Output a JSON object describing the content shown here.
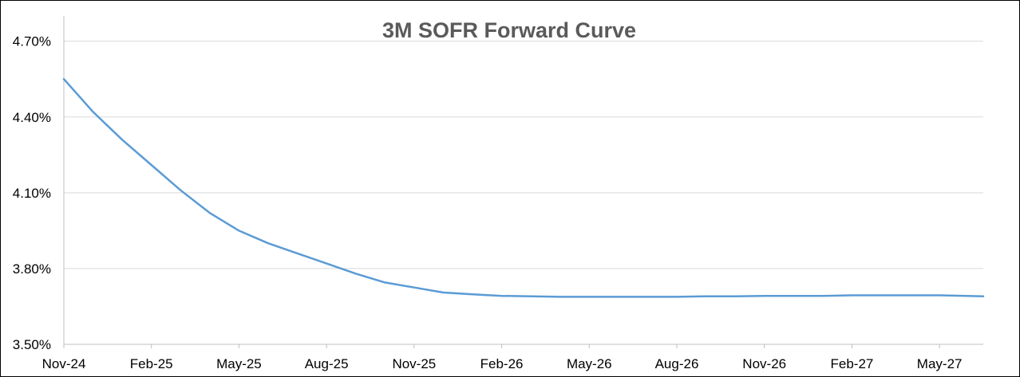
{
  "chart_data": {
    "type": "line",
    "title": "3M SOFR Forward Curve",
    "xlabel": "",
    "ylabel": "",
    "ylim": [
      3.5,
      4.8
    ],
    "y_ticks": [
      3.5,
      3.8,
      4.1,
      4.4,
      4.7
    ],
    "y_tick_labels": [
      "3.50%",
      "3.80%",
      "4.10%",
      "4.40%",
      "4.70%"
    ],
    "x_tick_labels": [
      "Nov-24",
      "Feb-25",
      "May-25",
      "Aug-25",
      "Nov-25",
      "Feb-26",
      "May-26",
      "Aug-26",
      "Nov-26",
      "Feb-27",
      "May-27"
    ],
    "x_range_months": [
      0,
      31.5
    ],
    "grid": true,
    "legend": "none",
    "line_color": "#5b9bd5",
    "series": [
      {
        "x": [
          0,
          1,
          2,
          3,
          4,
          5,
          6,
          7,
          8,
          9,
          10,
          11,
          12,
          13,
          14,
          15,
          16,
          17,
          18,
          19,
          20,
          21,
          22,
          23,
          24,
          25,
          26,
          27,
          28,
          29,
          30,
          31.5
        ],
        "values": [
          4.55,
          4.42,
          4.31,
          4.21,
          4.11,
          4.02,
          3.95,
          3.9,
          3.86,
          3.82,
          3.78,
          3.745,
          3.725,
          3.705,
          3.698,
          3.692,
          3.69,
          3.688,
          3.688,
          3.688,
          3.688,
          3.688,
          3.69,
          3.69,
          3.692,
          3.692,
          3.692,
          3.694,
          3.694,
          3.694,
          3.694,
          3.69
        ]
      }
    ]
  }
}
